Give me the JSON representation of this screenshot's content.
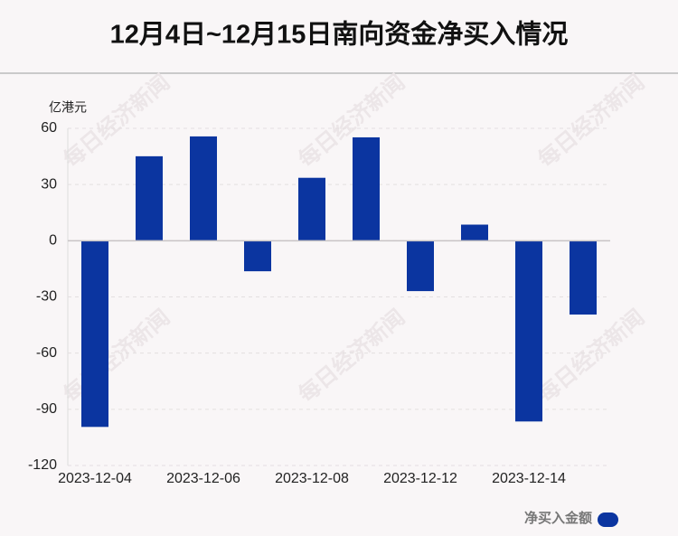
{
  "chart_data": {
    "type": "bar",
    "title": "12月4日~12月15日南向资金净买入情况",
    "y_label": "亿港元",
    "watermark": "每日经济新闻",
    "categories": [
      "2023-12-04",
      null,
      "2023-12-06",
      null,
      "2023-12-08",
      null,
      "2023-12-12",
      null,
      "2023-12-14",
      null
    ],
    "series": [
      {
        "name": "净买入金额",
        "color": "#0b35a0",
        "values": [
          -99.4,
          45.1,
          55.7,
          -16.3,
          33.6,
          55.2,
          -26.9,
          8.6,
          -96.5,
          -39.4
        ]
      }
    ],
    "ylim": [
      -120,
      60
    ],
    "yticks": [
      -120,
      -90,
      -60,
      -30,
      0,
      30,
      60
    ],
    "grid": true
  }
}
